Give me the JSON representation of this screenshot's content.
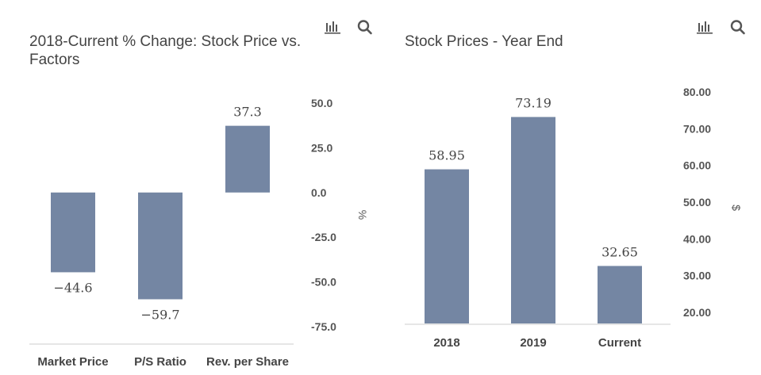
{
  "icons": {
    "chart_type": "bar-chart-icon",
    "zoom": "search-icon"
  },
  "colors": {
    "bar": "#7486A3",
    "text": "#444444",
    "axis": "#cccccc"
  },
  "chart_data": [
    {
      "type": "bar",
      "title": "2018-Current % Change: Stock Price vs. Factors",
      "categories": [
        "Market Price",
        "P/S Ratio",
        "Rev. per Share"
      ],
      "values": [
        -44.6,
        -59.7,
        37.3
      ],
      "value_labels": [
        "−44.6",
        "−59.7",
        "37.3"
      ],
      "ylabel": "%",
      "ylim": [
        -75,
        50
      ],
      "yticks": [
        50,
        25,
        0,
        -25,
        -50,
        -75
      ],
      "ytick_labels": [
        "50.0",
        "25.0",
        "0.0",
        "-25.0",
        "-50.0",
        "-75.0"
      ],
      "y_axis_side": "right",
      "grid": false,
      "legend": "none"
    },
    {
      "type": "bar",
      "title": "Stock Prices - Year End",
      "categories": [
        "2018",
        "2019",
        "Current"
      ],
      "values": [
        58.95,
        73.19,
        32.65
      ],
      "value_labels": [
        "58.95",
        "73.19",
        "32.65"
      ],
      "ylabel": "$",
      "ylim": [
        17,
        80
      ],
      "yticks": [
        80,
        70,
        60,
        50,
        40,
        30,
        20
      ],
      "ytick_labels": [
        "80.00",
        "70.00",
        "60.00",
        "50.00",
        "40.00",
        "30.00",
        "20.00"
      ],
      "y_axis_side": "right",
      "grid": false,
      "legend": "none"
    }
  ]
}
